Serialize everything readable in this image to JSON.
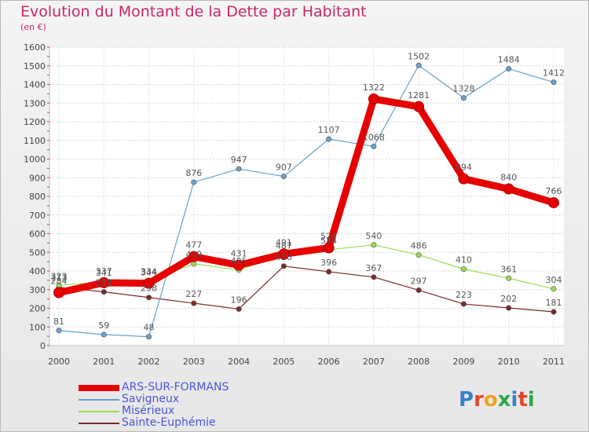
{
  "header": {
    "title": "Evolution du Montant de la Dette par Habitant",
    "subtitle": "(en €)"
  },
  "logo_text": "Proxiti",
  "chart_data": {
    "type": "line",
    "title": "Evolution du Montant de la Dette par Habitant",
    "subtitle": "(en €)",
    "x": [
      "2000",
      "2001",
      "2002",
      "2003",
      "2004",
      "2005",
      "2006",
      "2007",
      "2008",
      "2009",
      "2010",
      "2011"
    ],
    "ylim": [
      0,
      1600
    ],
    "yticks": [
      0,
      100,
      200,
      300,
      400,
      500,
      600,
      700,
      800,
      900,
      1000,
      1100,
      1200,
      1300,
      1400,
      1500,
      1600
    ],
    "grid": true,
    "legend_position": "bottom-left",
    "series": [
      {
        "name": "ARS-SUR-FORMANS",
        "color": "#e60000",
        "values": [
          284,
          337,
          334,
          477,
          431,
          491,
          524,
          1322,
          1281,
          894,
          840,
          766
        ]
      },
      {
        "name": "Savigneux",
        "color": "#6aa0cc",
        "values": [
          81,
          59,
          48,
          876,
          947,
          907,
          1107,
          1068,
          1502,
          1328,
          1484,
          1412
        ]
      },
      {
        "name": "Misérieux",
        "color": "#99dd55",
        "values": [
          323,
          341,
          344,
          439,
          405,
          487,
          514,
          540,
          486,
          410,
          361,
          304
        ]
      },
      {
        "name": "Sainte-Euphémie",
        "color": "#7a2a2a",
        "values": [
          313,
          288,
          258,
          227,
          196,
          426,
          396,
          367,
          297,
          223,
          202,
          181
        ]
      }
    ]
  }
}
